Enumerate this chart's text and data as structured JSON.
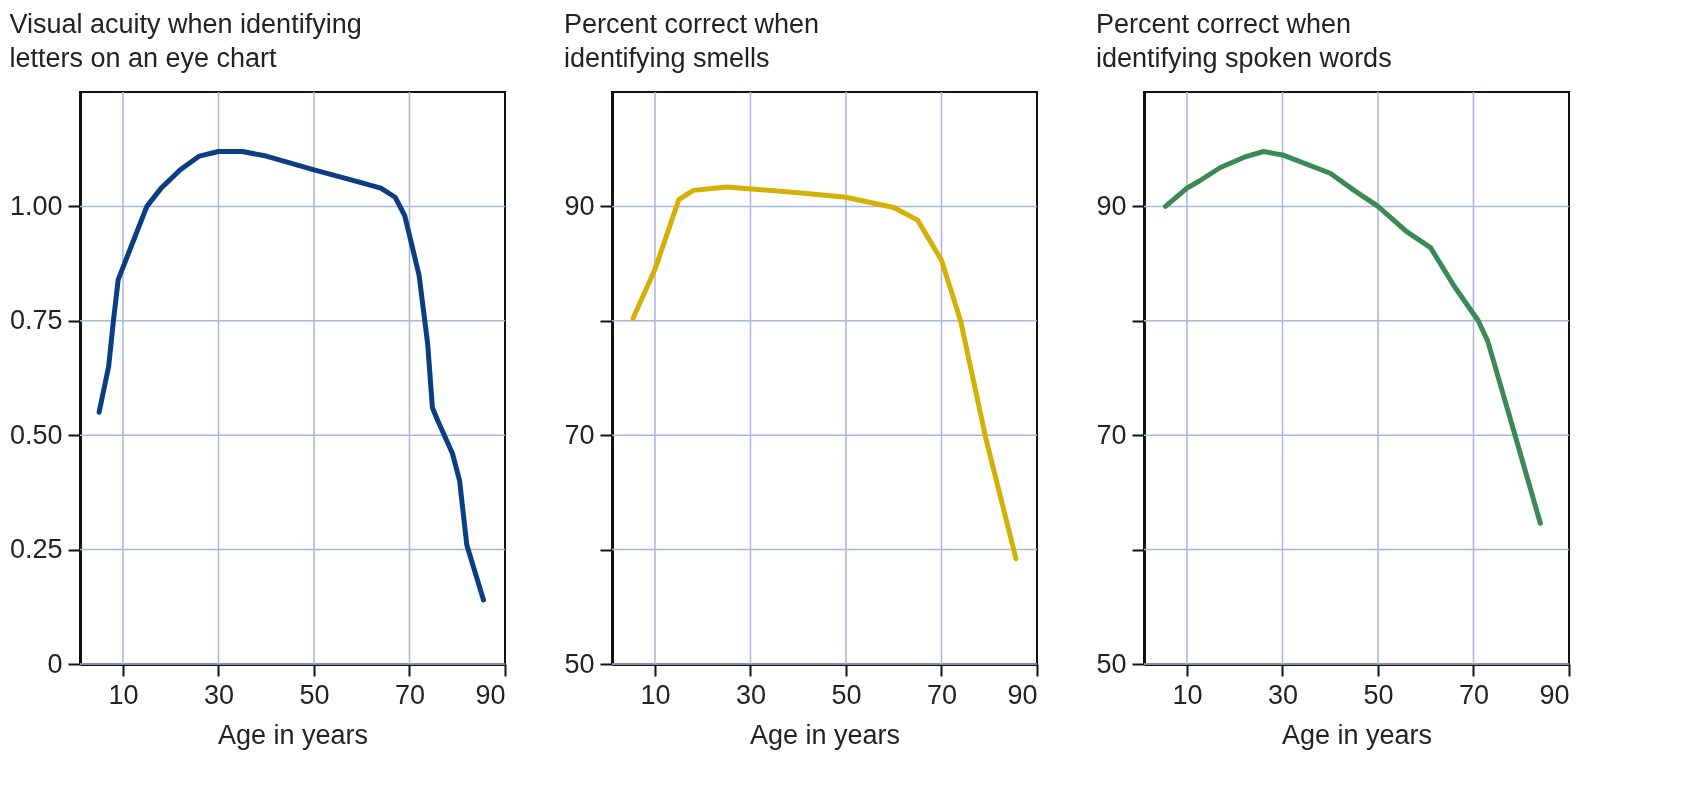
{
  "chart_data": [
    {
      "type": "line",
      "title": "Visual acuity when identifying letters on an eye chart",
      "xlabel": "Age in years",
      "xlim": [
        1,
        90
      ],
      "xticks": [
        10,
        30,
        50,
        70,
        90
      ],
      "ylim": [
        0,
        1.25
      ],
      "yticks": [
        0,
        0.25,
        {
          "value": 0.5,
          "label": "0.50"
        },
        0.75,
        {
          "value": 1,
          "label": "1.00"
        }
      ],
      "grid": true,
      "x": [
        5,
        7,
        8,
        9,
        12,
        15,
        18,
        22,
        26,
        30,
        35,
        40,
        50,
        57,
        64,
        67,
        69,
        72,
        73.8,
        74.8,
        76,
        79,
        80.5,
        82,
        85.5
      ],
      "series": [
        {
          "color": "#0b3d82",
          "values": [
            0.55,
            0.65,
            0.75,
            0.84,
            0.92,
            1.0,
            1.04,
            1.08,
            1.11,
            1.12,
            1.12,
            1.11,
            1.08,
            1.06,
            1.04,
            1.02,
            0.98,
            0.85,
            0.7,
            0.56,
            0.53,
            0.46,
            0.4,
            0.26,
            0.14
          ]
        }
      ]
    },
    {
      "type": "line",
      "title": "Percent correct when identifying smells",
      "xlabel": "Age in years",
      "xlim": [
        1,
        90
      ],
      "xticks": [
        10,
        30,
        50,
        70,
        90
      ],
      "ylim": [
        50,
        100
      ],
      "yticks": [
        50,
        {
          "value": 60,
          "label": null
        },
        70,
        {
          "value": 80,
          "label": null
        },
        90
      ],
      "grid": true,
      "x": [
        5.4,
        10,
        15,
        18,
        25,
        40,
        50,
        60,
        65,
        70,
        74,
        79.3,
        85.6
      ],
      "series": [
        {
          "color": "#d4b106",
          "values": [
            80.2,
            84.5,
            90.6,
            91.4,
            91.7,
            91.2,
            90.8,
            89.9,
            88.8,
            85.3,
            80,
            69.7,
            59.2
          ]
        }
      ]
    },
    {
      "type": "line",
      "title": "Percent correct when identifying spoken words",
      "xlabel": "Age in years",
      "xlim": [
        1,
        90
      ],
      "xticks": [
        10,
        30,
        50,
        70,
        90
      ],
      "ylim": [
        50,
        100
      ],
      "yticks": [
        50,
        {
          "value": 60,
          "label": null
        },
        70,
        {
          "value": 80,
          "label": null
        },
        90
      ],
      "grid": true,
      "x": [
        5.5,
        10,
        12.5,
        17,
        22,
        26,
        30,
        40,
        45,
        50,
        56,
        61,
        66,
        71,
        73,
        78.7,
        84
      ],
      "series": [
        {
          "color": "#3a8a55",
          "values": [
            90,
            91.6,
            92.2,
            93.4,
            94.3,
            94.8,
            94.5,
            92.9,
            91.4,
            90,
            87.8,
            86.4,
            83,
            80,
            78.2,
            70,
            62.3
          ]
        }
      ]
    }
  ]
}
